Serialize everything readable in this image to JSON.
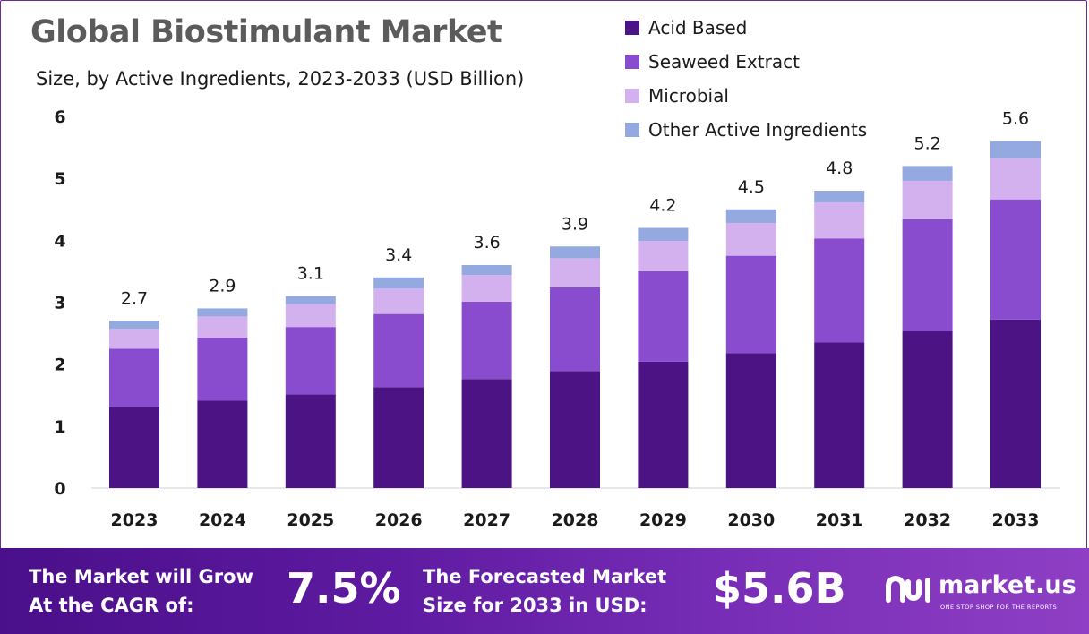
{
  "header": {
    "title": "Global Biostimulant Market",
    "subtitle": "Size, by Active Ingredients, 2023-2033 (USD Billion)"
  },
  "colors": {
    "acid": "#4b1383",
    "seaweed": "#8a4ccf",
    "microbial": "#d3b1ee",
    "other": "#93a9e0"
  },
  "footer": {
    "cagr_text_line1": "The Market will Grow",
    "cagr_text_line2": "At the CAGR of:",
    "cagr_value": "7.5%",
    "forecast_text_line1": "The Forecasted Market",
    "forecast_text_line2": "Size for 2033 in USD:",
    "forecast_value": "$5.6B",
    "brand": "market.us",
    "tagline": "ONE STOP SHOP FOR THE REPORTS"
  },
  "chart_data": {
    "type": "bar",
    "stacked": true,
    "categories": [
      "2023",
      "2024",
      "2025",
      "2026",
      "2027",
      "2028",
      "2029",
      "2030",
      "2031",
      "2032",
      "2033"
    ],
    "totals": [
      "2.7",
      "2.9",
      "3.1",
      "3.4",
      "3.6",
      "3.9",
      "4.2",
      "4.5",
      "4.8",
      "5.2",
      "5.6"
    ],
    "series": [
      {
        "name": "Acid Based",
        "color_key": "acid",
        "values": [
          1.31,
          1.41,
          1.51,
          1.63,
          1.76,
          1.89,
          2.04,
          2.18,
          2.35,
          2.53,
          2.72
        ]
      },
      {
        "name": "Seaweed Extract",
        "color_key": "seaweed",
        "values": [
          0.94,
          1.02,
          1.09,
          1.18,
          1.25,
          1.35,
          1.46,
          1.57,
          1.68,
          1.81,
          1.94
        ]
      },
      {
        "name": "Microbial",
        "color_key": "microbial",
        "values": [
          0.32,
          0.34,
          0.37,
          0.41,
          0.43,
          0.47,
          0.49,
          0.53,
          0.58,
          0.62,
          0.67
        ]
      },
      {
        "name": "Other Active Ingredients",
        "color_key": "other",
        "values": [
          0.13,
          0.13,
          0.13,
          0.18,
          0.16,
          0.19,
          0.21,
          0.22,
          0.19,
          0.24,
          0.27
        ]
      }
    ],
    "yticks": [
      "0",
      "1",
      "2",
      "3",
      "4",
      "5",
      "6"
    ],
    "ylim": [
      0,
      6
    ],
    "legend": "top-right",
    "grid": false
  }
}
